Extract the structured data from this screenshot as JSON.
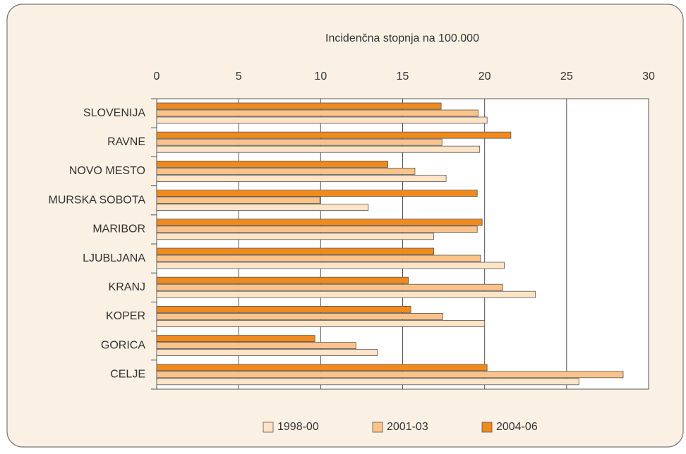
{
  "chart_data": {
    "type": "barh",
    "title": "Incidenčna stopnja na 100.000",
    "categories": [
      "SLOVENIJA",
      "RAVNE",
      "NOVO MESTO",
      "MURSKA SOBOTA",
      "MARIBOR",
      "LJUBLJANA",
      "KRANJ",
      "KOPER",
      "GORICA",
      "CELJE"
    ],
    "series": [
      {
        "name": "1998-00",
        "color": "#fde4c6",
        "values": [
          20.15,
          19.7,
          17.65,
          12.9,
          16.9,
          21.2,
          23.1,
          20.0,
          13.45,
          25.75
        ]
      },
      {
        "name": "2001-03",
        "color": "#fbc38a",
        "values": [
          19.6,
          17.4,
          15.75,
          9.95,
          19.55,
          19.75,
          21.1,
          17.45,
          12.15,
          28.45
        ]
      },
      {
        "name": "2004-06",
        "color": "#f08a1c",
        "values": [
          17.35,
          21.6,
          14.1,
          19.55,
          19.85,
          16.9,
          15.35,
          15.5,
          9.65,
          20.15
        ]
      }
    ],
    "xlim": [
      0,
      30
    ],
    "xticks": [
      0,
      5,
      10,
      15,
      20,
      25,
      30
    ],
    "grid": true,
    "legend": "bottom"
  }
}
